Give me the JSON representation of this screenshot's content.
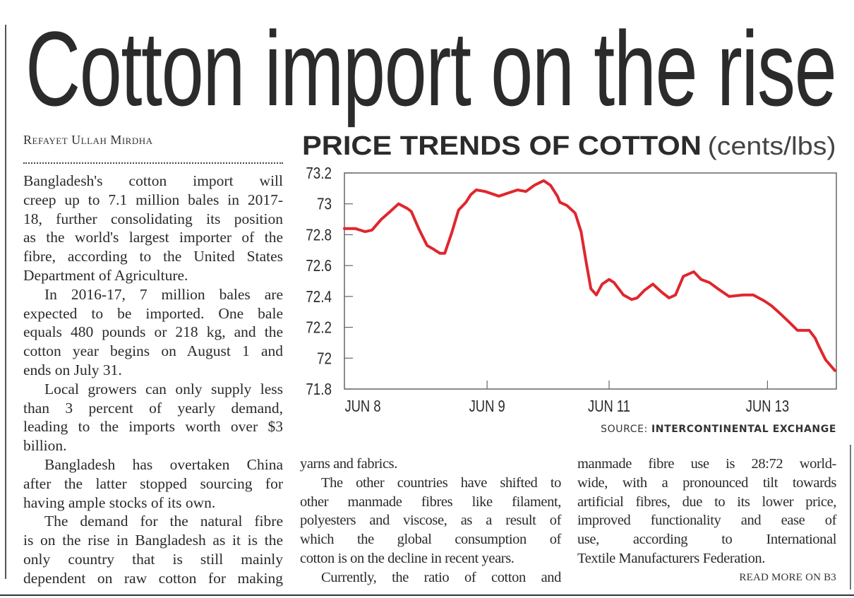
{
  "headline": "Cotton import on the rise",
  "byline": "Refayet Ullah Mirdha",
  "columns": [
    {
      "paragraphs": [
        {
          "indent": false,
          "continues": false,
          "lines": [
            "Bangladesh's cotton import will",
            "creep up to 7.1 million bales in 2017-",
            "18, further consolidating its position",
            "as the world's largest importer of the",
            "fibre, according to the United States",
            "Department of Agriculture."
          ]
        },
        {
          "indent": true,
          "continues": false,
          "lines": [
            "In 2016-17, 7 million bales are",
            "expected to be imported. One bale",
            "equals 480 pounds or 218 kg, and the",
            "cotton year begins on August 1 and",
            "ends on July 31."
          ]
        },
        {
          "indent": true,
          "continues": false,
          "lines": [
            "Local growers can only supply less",
            "than 3 percent of yearly demand,",
            "leading to the imports worth over $3",
            "billion."
          ]
        },
        {
          "indent": true,
          "continues": false,
          "lines": [
            "Bangladesh has overtaken China",
            "after the latter stopped sourcing for",
            "having ample stocks of its own."
          ]
        },
        {
          "indent": true,
          "continues": true,
          "lines": [
            "The demand for the natural fibre",
            "is on the rise in Bangladesh as it is the",
            "only country that is still mainly",
            "dependent on raw cotton for making"
          ]
        }
      ]
    },
    {
      "paragraphs": [
        {
          "indent": false,
          "continues": false,
          "lines": [
            "yarns and fabrics."
          ]
        },
        {
          "indent": true,
          "continues": false,
          "lines": [
            "The other countries have shifted to",
            "other manmade fibres like filament,",
            "polyesters and viscose, as a result of",
            "which the global consumption of",
            "cotton is on the decline in recent years."
          ]
        },
        {
          "indent": true,
          "continues": true,
          "lines": [
            "Currently, the ratio of cotton and"
          ]
        }
      ]
    },
    {
      "paragraphs": [
        {
          "indent": false,
          "continues": false,
          "lines": [
            "manmade fibre use is 28:72 world-",
            "wide, with a pronounced tilt towards",
            "artificial fibres, due to its lower price,",
            "improved functionality and ease of",
            "use, according to International",
            "Textile Manufacturers Federation."
          ]
        }
      ]
    }
  ],
  "read_more": "READ MORE ON B3",
  "chart_data": {
    "type": "line",
    "title": "PRICE TRENDS OF COTTON",
    "unit": "(cents/lbs)",
    "source_label": "SOURCE:",
    "source": "INTERCONTINENTAL EXCHANGE",
    "xlabel": "",
    "ylabel": "",
    "ylim": [
      71.8,
      73.2
    ],
    "yticks": [
      "73.2",
      "73",
      "72.8",
      "72.6",
      "72.4",
      "72.2",
      "72",
      "71.8"
    ],
    "xlim": [
      0,
      100
    ],
    "xticks": [
      {
        "label": "JUN 8",
        "x": 0
      },
      {
        "label": "JUN 9",
        "x": 29
      },
      {
        "label": "JUN 11",
        "x": 53.8
      },
      {
        "label": "JUN 13",
        "x": 86
      }
    ],
    "grid": false,
    "color": "#e0262e",
    "series": [
      {
        "name": "Cotton price",
        "points": [
          [
            0,
            72.84
          ],
          [
            2.2,
            72.84
          ],
          [
            4.2,
            72.82
          ],
          [
            5.6,
            72.83
          ],
          [
            7.5,
            72.9
          ],
          [
            9.3,
            72.95
          ],
          [
            11.0,
            73.0
          ],
          [
            12.8,
            72.97
          ],
          [
            13.6,
            72.95
          ],
          [
            15.1,
            72.84
          ],
          [
            16.8,
            72.73
          ],
          [
            17.9,
            72.71
          ],
          [
            19.4,
            72.68
          ],
          [
            20.4,
            72.68
          ],
          [
            21.8,
            72.81
          ],
          [
            23.2,
            72.96
          ],
          [
            24.7,
            73.01
          ],
          [
            25.7,
            73.06
          ],
          [
            26.8,
            73.09
          ],
          [
            28.6,
            73.08
          ],
          [
            31.4,
            73.05
          ],
          [
            33.3,
            73.07
          ],
          [
            35.2,
            73.09
          ],
          [
            36.9,
            73.08
          ],
          [
            38.6,
            73.12
          ],
          [
            40.5,
            73.15
          ],
          [
            41.9,
            73.12
          ],
          [
            43.3,
            73.05
          ],
          [
            43.8,
            73.01
          ],
          [
            45.2,
            72.99
          ],
          [
            46.9,
            72.94
          ],
          [
            48.1,
            72.82
          ],
          [
            49.1,
            72.63
          ],
          [
            50.1,
            72.45
          ],
          [
            51.2,
            72.41
          ],
          [
            52.4,
            72.48
          ],
          [
            53.8,
            72.51
          ],
          [
            54.8,
            72.49
          ],
          [
            56.7,
            72.41
          ],
          [
            58.4,
            72.38
          ],
          [
            59.5,
            72.39
          ],
          [
            61.0,
            72.44
          ],
          [
            62.7,
            72.48
          ],
          [
            64.4,
            72.43
          ],
          [
            66.0,
            72.39
          ],
          [
            67.3,
            72.41
          ],
          [
            68.9,
            72.53
          ],
          [
            71.0,
            72.56
          ],
          [
            72.5,
            72.51
          ],
          [
            74.2,
            72.49
          ],
          [
            75.9,
            72.45
          ],
          [
            78.2,
            72.4
          ],
          [
            81.1,
            72.41
          ],
          [
            83.1,
            72.41
          ],
          [
            85.4,
            72.37
          ],
          [
            86.8,
            72.34
          ],
          [
            88.2,
            72.3
          ],
          [
            90.2,
            72.24
          ],
          [
            92.1,
            72.18
          ],
          [
            94.5,
            72.18
          ],
          [
            95.7,
            72.13
          ],
          [
            96.4,
            72.08
          ],
          [
            97.8,
            71.99
          ],
          [
            99.7,
            71.92
          ]
        ]
      }
    ]
  }
}
